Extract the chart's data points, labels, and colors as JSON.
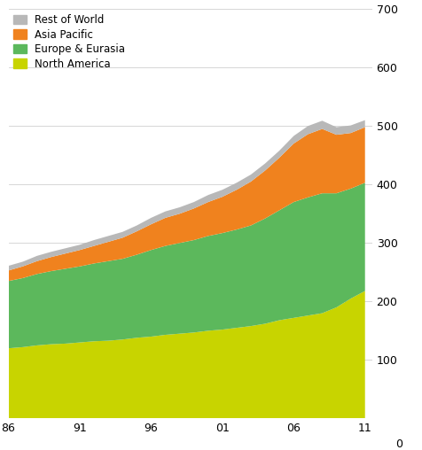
{
  "years": [
    1986,
    1987,
    1988,
    1989,
    1990,
    1991,
    1992,
    1993,
    1994,
    1995,
    1996,
    1997,
    1998,
    1999,
    2000,
    2001,
    2002,
    2003,
    2004,
    2005,
    2006,
    2007,
    2008,
    2009,
    2010,
    2011
  ],
  "north_america": [
    120,
    122,
    125,
    127,
    128,
    130,
    132,
    133,
    135,
    138,
    140,
    143,
    145,
    147,
    150,
    152,
    155,
    158,
    162,
    168,
    172,
    176,
    180,
    190,
    205,
    218
  ],
  "europe_eurasia": [
    115,
    118,
    122,
    125,
    128,
    130,
    133,
    136,
    138,
    142,
    148,
    152,
    155,
    158,
    162,
    165,
    168,
    172,
    180,
    188,
    198,
    202,
    205,
    195,
    188,
    185
  ],
  "asia_pacific": [
    18,
    20,
    22,
    24,
    26,
    28,
    30,
    33,
    36,
    40,
    44,
    48,
    50,
    54,
    58,
    62,
    68,
    75,
    82,
    90,
    100,
    108,
    110,
    100,
    95,
    95
  ],
  "rest_of_world": [
    8,
    8,
    9,
    9,
    9,
    9,
    10,
    10,
    10,
    10,
    11,
    11,
    11,
    11,
    12,
    12,
    12,
    12,
    12,
    12,
    13,
    14,
    14,
    13,
    13,
    12
  ],
  "colors": {
    "north_america": "#c8d400",
    "europe_eurasia": "#5cb85c",
    "asia_pacific": "#f0821e",
    "rest_of_world": "#b8b8b8"
  },
  "yticks": [
    100,
    200,
    300,
    400,
    500,
    600,
    700
  ],
  "ylim": [
    0,
    700
  ],
  "xlim": [
    1986,
    2011.5
  ],
  "background_color": "#ffffff"
}
